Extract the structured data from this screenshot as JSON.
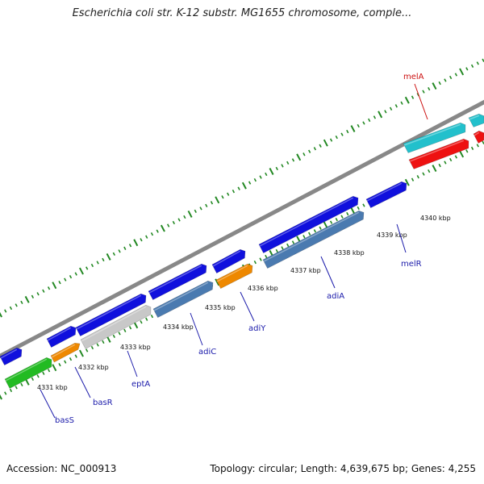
{
  "title": "Escherichia coli str. K-12 substr. MG1655 chromosome, comple...",
  "footer": {
    "accession": "Accession: NC_000913",
    "summary": "Topology: circular; Length: 4,639,675 bp; Genes: 4,255"
  },
  "colors": {
    "blue": "#1010dd",
    "steel": "#4a7ab0",
    "orange": "#ee8800",
    "green": "#22bb22",
    "cyan": "#22c0cc",
    "red": "#ee1111",
    "gray": "#c8c8c8",
    "backbone": "#888888",
    "tick": "#228822",
    "label_blue": "#1a1aaa",
    "label_red": "#cc1111"
  },
  "kbp_labels": [
    "4331 kbp",
    "4332 kbp",
    "4333 kbp",
    "4334 kbp",
    "4335 kbp",
    "4336 kbp",
    "4337 kbp",
    "4338 kbp",
    "4339 kbp",
    "4340 kbp"
  ],
  "gene_labels": [
    {
      "name": "basS",
      "color": "blue"
    },
    {
      "name": "basR",
      "color": "blue"
    },
    {
      "name": "eptA",
      "color": "blue"
    },
    {
      "name": "adiC",
      "color": "blue"
    },
    {
      "name": "adiY",
      "color": "blue"
    },
    {
      "name": "adiA",
      "color": "blue"
    },
    {
      "name": "melR",
      "color": "blue"
    },
    {
      "name": "melA",
      "color": "red"
    }
  ]
}
